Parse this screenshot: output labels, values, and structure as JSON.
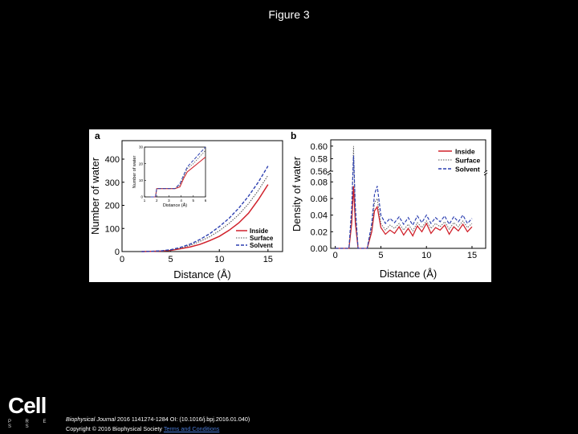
{
  "page_title": "Figure 3",
  "logo": {
    "text": "Cell",
    "subtext": "P R E S S"
  },
  "caption": {
    "journal": "Biophysical Journal",
    "line1_rest": " 2016 1141274-1284 OI: (10.1016/j.bpj.2016.01.040)",
    "line2": "Copyright © 2016 Biophysical Society ",
    "terms_link": "Terms and Conditions"
  },
  "colors": {
    "inside": "#d0202a",
    "surface": "#555555",
    "solvent": "#2c3fb0"
  },
  "chart_data": [
    {
      "panel": "a",
      "type": "line",
      "xlabel": "Distance (Å)",
      "ylabel": "Number of water",
      "xlim": [
        0,
        16.5
      ],
      "ylim": [
        0,
        480
      ],
      "xticks": [
        0,
        5,
        10,
        15
      ],
      "yticks": [
        0,
        100,
        200,
        300,
        400
      ],
      "legend": "bottom-right",
      "series": [
        {
          "name": "Inside",
          "x": [
            2,
            3,
            4,
            5,
            6,
            7,
            8,
            9,
            10,
            11,
            12,
            13,
            14,
            15
          ],
          "values": [
            0,
            1,
            2,
            5,
            12,
            20,
            31,
            47,
            66,
            92,
            124,
            166,
            224,
            290
          ]
        },
        {
          "name": "Surface",
          "x": [
            2,
            3,
            4,
            5,
            6,
            7,
            8,
            9,
            10,
            11,
            12,
            13,
            14,
            15
          ],
          "values": [
            0,
            1,
            3,
            7,
            15,
            27,
            44,
            64,
            90,
            122,
            160,
            207,
            264,
            330
          ]
        },
        {
          "name": "Solvent",
          "x": [
            2,
            3,
            4,
            5,
            6,
            7,
            8,
            9,
            10,
            11,
            12,
            13,
            14,
            15
          ],
          "values": [
            0,
            1,
            3,
            8,
            18,
            32,
            52,
            77,
            108,
            144,
            188,
            240,
            300,
            370
          ]
        }
      ],
      "inset": {
        "xlabel": "Distance (Å)",
        "ylabel": "Number of water",
        "xlim": [
          1,
          6
        ],
        "ylim": [
          0,
          30
        ],
        "xticks": [
          1,
          2,
          3,
          4,
          5,
          6
        ],
        "yticks": [
          0,
          10,
          20,
          30
        ],
        "series": [
          {
            "name": "Inside",
            "x": [
              1.5,
              1.9,
              2.0,
              2.5,
              3.0,
              3.5,
              3.9,
              4.2,
              4.5,
              5.0,
              5.5,
              6.0
            ],
            "values": [
              0,
              0,
              5,
              5,
              5,
              5,
              6,
              11,
              15,
              18,
              21,
              24
            ]
          },
          {
            "name": "Surface",
            "x": [
              1.5,
              1.9,
              2.0,
              2.5,
              3.0,
              3.5,
              3.9,
              4.2,
              4.5,
              5.0,
              5.5,
              6.0
            ],
            "values": [
              0,
              0,
              5,
              5,
              5,
              5,
              7,
              12,
              17,
              20,
              24,
              28
            ]
          },
          {
            "name": "Solvent",
            "x": [
              1.5,
              1.9,
              2.0,
              2.5,
              3.0,
              3.5,
              3.9,
              4.2,
              4.5,
              5.0,
              5.5,
              6.0
            ],
            "values": [
              0,
              0,
              5,
              5,
              5,
              5,
              8,
              13,
              18,
              22,
              26,
              30
            ]
          }
        ]
      }
    },
    {
      "panel": "b",
      "type": "line",
      "xlabel": "Distance (Å)",
      "ylabel": "Density of water",
      "xlim": [
        -0.5,
        16.5
      ],
      "axis_break": {
        "lower_max": 0.09,
        "upper_min": 0.56,
        "upper_max": 0.61
      },
      "xticks": [
        0,
        5,
        10,
        15
      ],
      "yticks_lower": [
        "0.00",
        "0.02",
        "0.04",
        "0.06",
        "0.08"
      ],
      "yticks_upper": [
        "0.56",
        "0.58",
        "0.60"
      ],
      "legend": "top-right",
      "series": [
        {
          "name": "Inside",
          "x": [
            0,
            0.5,
            1,
            1.5,
            1.8,
            2.0,
            2.2,
            2.5,
            3.0,
            3.5,
            4.0,
            4.3,
            4.6,
            5.0,
            5.5,
            6,
            6.5,
            7,
            7.5,
            8,
            8.5,
            9,
            9.5,
            10,
            10.5,
            11,
            11.5,
            12,
            12.5,
            13,
            13.5,
            14,
            14.5,
            15
          ],
          "values": [
            0,
            0,
            0,
            0,
            0.03,
            0.075,
            0.03,
            0.0,
            0.0,
            0.0,
            0.02,
            0.045,
            0.05,
            0.025,
            0.017,
            0.022,
            0.018,
            0.026,
            0.016,
            0.024,
            0.015,
            0.027,
            0.02,
            0.03,
            0.018,
            0.025,
            0.022,
            0.028,
            0.017,
            0.026,
            0.021,
            0.029,
            0.02,
            0.026
          ]
        },
        {
          "name": "Surface",
          "x": [
            0,
            0.5,
            1,
            1.5,
            1.8,
            2.0,
            2.2,
            2.5,
            3.0,
            3.5,
            4.0,
            4.3,
            4.6,
            5.0,
            5.5,
            6,
            6.5,
            7,
            7.5,
            8,
            8.5,
            9,
            9.5,
            10,
            10.5,
            11,
            11.5,
            12,
            12.5,
            13,
            13.5,
            14,
            14.5,
            15
          ],
          "values": [
            0,
            0,
            0,
            0,
            0.04,
            0.6,
            0.04,
            0.0,
            0.0,
            0.0,
            0.025,
            0.055,
            0.06,
            0.03,
            0.022,
            0.028,
            0.024,
            0.03,
            0.022,
            0.029,
            0.021,
            0.031,
            0.025,
            0.033,
            0.024,
            0.03,
            0.026,
            0.032,
            0.023,
            0.031,
            0.026,
            0.033,
            0.025,
            0.03
          ]
        },
        {
          "name": "Solvent",
          "x": [
            0,
            0.5,
            1,
            1.5,
            1.8,
            2.0,
            2.2,
            2.5,
            3.0,
            3.5,
            4.0,
            4.3,
            4.6,
            5.0,
            5.5,
            6,
            6.5,
            7,
            7.5,
            8,
            8.5,
            9,
            9.5,
            10,
            10.5,
            11,
            11.5,
            12,
            12.5,
            13,
            13.5,
            14,
            14.5,
            15
          ],
          "values": [
            0,
            0,
            0,
            0,
            0.05,
            0.585,
            0.05,
            0.0,
            0.0,
            0.0,
            0.03,
            0.065,
            0.075,
            0.04,
            0.03,
            0.036,
            0.031,
            0.038,
            0.029,
            0.037,
            0.028,
            0.039,
            0.031,
            0.04,
            0.03,
            0.037,
            0.032,
            0.039,
            0.029,
            0.038,
            0.032,
            0.04,
            0.03,
            0.036
          ]
        }
      ]
    }
  ]
}
